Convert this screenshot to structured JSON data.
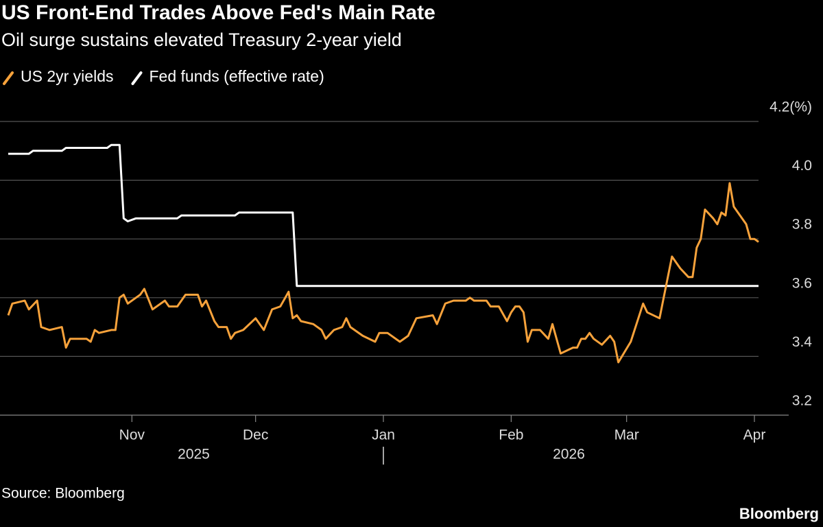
{
  "chart_data": {
    "type": "line",
    "title": "US Front-End Trades Above Fed's Main Rate",
    "subtitle": "Oil surge sustains elevated Treasury 2-year yield",
    "source": "Source: Bloomberg",
    "brand": "Bloomberg",
    "xlim": [
      0,
      183
    ],
    "xticks": [
      {
        "value": 31,
        "label": "Nov"
      },
      {
        "value": 61,
        "label": "Dec"
      },
      {
        "value": 92,
        "label": "Jan"
      },
      {
        "value": 123,
        "label": "Feb"
      },
      {
        "value": 151,
        "label": "Mar"
      },
      {
        "value": 182,
        "label": "Apr"
      }
    ],
    "years": [
      "2025",
      "2026"
    ],
    "ylim": [
      3.2,
      4.2
    ],
    "yticks": [
      3.2,
      3.4,
      3.6,
      3.8,
      {
        "value": 4.0,
        "label": "4.0"
      },
      {
        "value": 4.2,
        "label": "4.2(%)"
      }
    ],
    "grid": true,
    "series": [
      {
        "name": "US 2yr yields",
        "color": "#f7a23b",
        "x": [
          1,
          2,
          5,
          6,
          8,
          9,
          11,
          14,
          15,
          16,
          20,
          21,
          22,
          23,
          26,
          27,
          28,
          29,
          30,
          32,
          33,
          34,
          36,
          39,
          40,
          42,
          44,
          47,
          48,
          49,
          51,
          52,
          54,
          55,
          56,
          58,
          61,
          63,
          65,
          67,
          69,
          70,
          71,
          72,
          75,
          77,
          78,
          80,
          82,
          83,
          84,
          87,
          90,
          91,
          93,
          96,
          98,
          99,
          100,
          104,
          105,
          107,
          109,
          111,
          112,
          113,
          114,
          117,
          118,
          120,
          122,
          123,
          124,
          125,
          126,
          127,
          128,
          129,
          130,
          132,
          133,
          135,
          138,
          139,
          140,
          141,
          142,
          143,
          145,
          147,
          148,
          149,
          152,
          155,
          156,
          159,
          160,
          162,
          164,
          166,
          167,
          168,
          169,
          170,
          172,
          173,
          174,
          175,
          176,
          177,
          180,
          181,
          182,
          183
        ],
        "values": [
          3.54,
          3.58,
          3.59,
          3.56,
          3.59,
          3.5,
          3.49,
          3.5,
          3.43,
          3.46,
          3.46,
          3.45,
          3.49,
          3.48,
          3.49,
          3.49,
          3.6,
          3.61,
          3.58,
          3.6,
          3.61,
          3.63,
          3.56,
          3.59,
          3.57,
          3.57,
          3.61,
          3.61,
          3.57,
          3.59,
          3.52,
          3.5,
          3.5,
          3.46,
          3.48,
          3.49,
          3.53,
          3.49,
          3.56,
          3.57,
          3.62,
          3.53,
          3.54,
          3.52,
          3.51,
          3.49,
          3.46,
          3.49,
          3.5,
          3.53,
          3.5,
          3.47,
          3.45,
          3.48,
          3.48,
          3.45,
          3.47,
          3.5,
          3.53,
          3.54,
          3.51,
          3.58,
          3.59,
          3.59,
          3.59,
          3.6,
          3.59,
          3.59,
          3.57,
          3.57,
          3.52,
          3.55,
          3.57,
          3.57,
          3.55,
          3.45,
          3.49,
          3.49,
          3.49,
          3.46,
          3.51,
          3.41,
          3.43,
          3.43,
          3.46,
          3.46,
          3.48,
          3.46,
          3.44,
          3.47,
          3.45,
          3.38,
          3.45,
          3.58,
          3.55,
          3.53,
          3.6,
          3.74,
          3.7,
          3.67,
          3.67,
          3.77,
          3.8,
          3.9,
          3.87,
          3.85,
          3.89,
          3.88,
          3.99,
          3.91,
          3.85,
          3.8,
          3.8,
          3.79
        ]
      },
      {
        "name": "Fed funds (effective rate)",
        "color": "#ffffff",
        "x": [
          1,
          6,
          7,
          14,
          15,
          25,
          26,
          28,
          29,
          30,
          32,
          42,
          43,
          56,
          57,
          70,
          71,
          183
        ],
        "values": [
          4.09,
          4.09,
          4.1,
          4.1,
          4.11,
          4.11,
          4.12,
          4.12,
          3.87,
          3.86,
          3.87,
          3.87,
          3.88,
          3.88,
          3.89,
          3.89,
          3.64,
          3.64
        ]
      }
    ]
  }
}
